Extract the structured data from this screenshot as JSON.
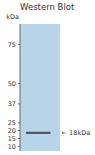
{
  "chart_data": {
    "type": "blot",
    "title": "Western Blot",
    "y_label": "kDa",
    "ylim": [
      7,
      88
    ],
    "yticks": [
      75,
      50,
      37,
      25,
      20,
      15,
      10
    ],
    "values": [
      18.5
    ],
    "band_height": [
      1.4
    ],
    "color": "#555566",
    "panel_color": "#b8d4e8",
    "annotations": [
      {
        "text": "← 18kDa",
        "y": 18.5
      }
    ],
    "tick_labels": "y"
  }
}
